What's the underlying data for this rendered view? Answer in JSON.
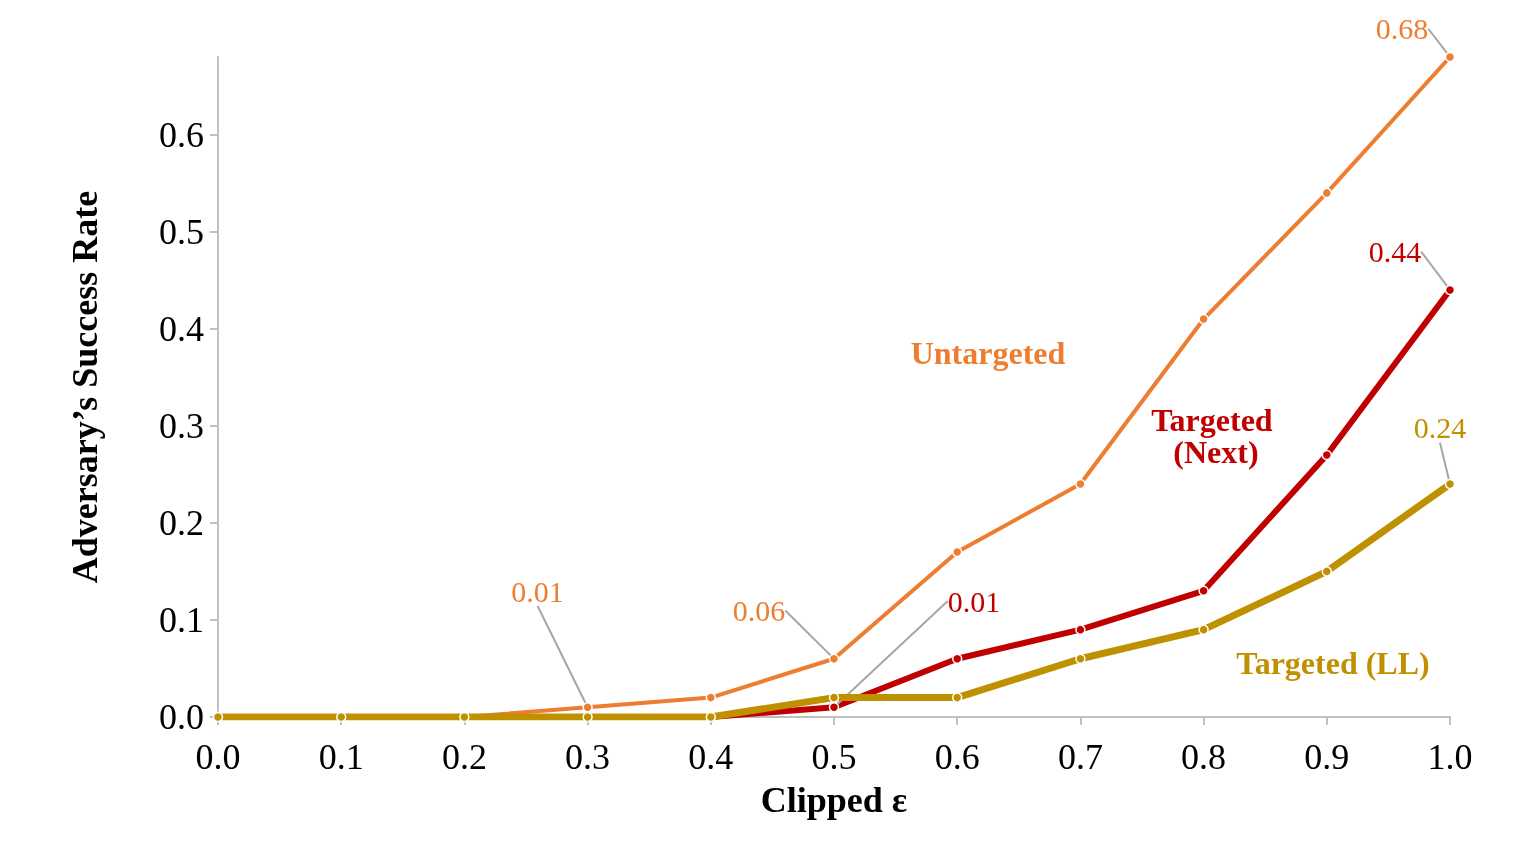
{
  "chart_data": {
    "type": "line",
    "xlabel": "Clipped ε",
    "ylabel": "Adversary’s Success Rate",
    "x": [
      0,
      0.1,
      0.2,
      0.3,
      0.4,
      0.5,
      0.6,
      0.7,
      0.8,
      0.9,
      1.0
    ],
    "series": [
      {
        "name": "Untargeted",
        "color": "#ed7d31",
        "values": [
          0,
          0,
          0,
          0.01,
          0.02,
          0.06,
          0.17,
          0.24,
          0.41,
          0.54,
          0.68
        ],
        "value_labels": [
          null,
          null,
          null,
          "0.01",
          null,
          "0.06",
          null,
          null,
          null,
          null,
          "0.68"
        ]
      },
      {
        "name": "Targeted (Next)",
        "color": "#c00000",
        "values": [
          null,
          null,
          null,
          0,
          0,
          0.01,
          0.06,
          0.09,
          0.13,
          0.27,
          0.44
        ],
        "value_labels": [
          null,
          null,
          null,
          null,
          null,
          "0.01",
          null,
          null,
          null,
          null,
          "0.44"
        ]
      },
      {
        "name": "Targeted (LL)",
        "color": "#bf9000",
        "values": [
          0,
          0,
          0,
          0,
          0,
          0.02,
          0.02,
          0.06,
          0.09,
          0.15,
          0.24
        ],
        "value_labels": [
          null,
          null,
          null,
          null,
          null,
          null,
          null,
          null,
          null,
          null,
          "0.24"
        ]
      }
    ],
    "xlim": [
      0,
      1
    ],
    "xticks": [
      {
        "value": 0,
        "label": "0.0"
      },
      0.1,
      0.2,
      0.3,
      0.4,
      0.5,
      0.6,
      0.7,
      0.8,
      0.9,
      {
        "value": 1,
        "label": "1.0"
      }
    ],
    "ylim": [
      0,
      0.68
    ],
    "yticks": [
      {
        "value": 0,
        "label": "0.0"
      },
      0.1,
      0.2,
      0.3,
      0.4,
      0.5,
      0.6
    ],
    "grid": false,
    "legend": false,
    "marker": "circle",
    "line_style": "solid"
  }
}
